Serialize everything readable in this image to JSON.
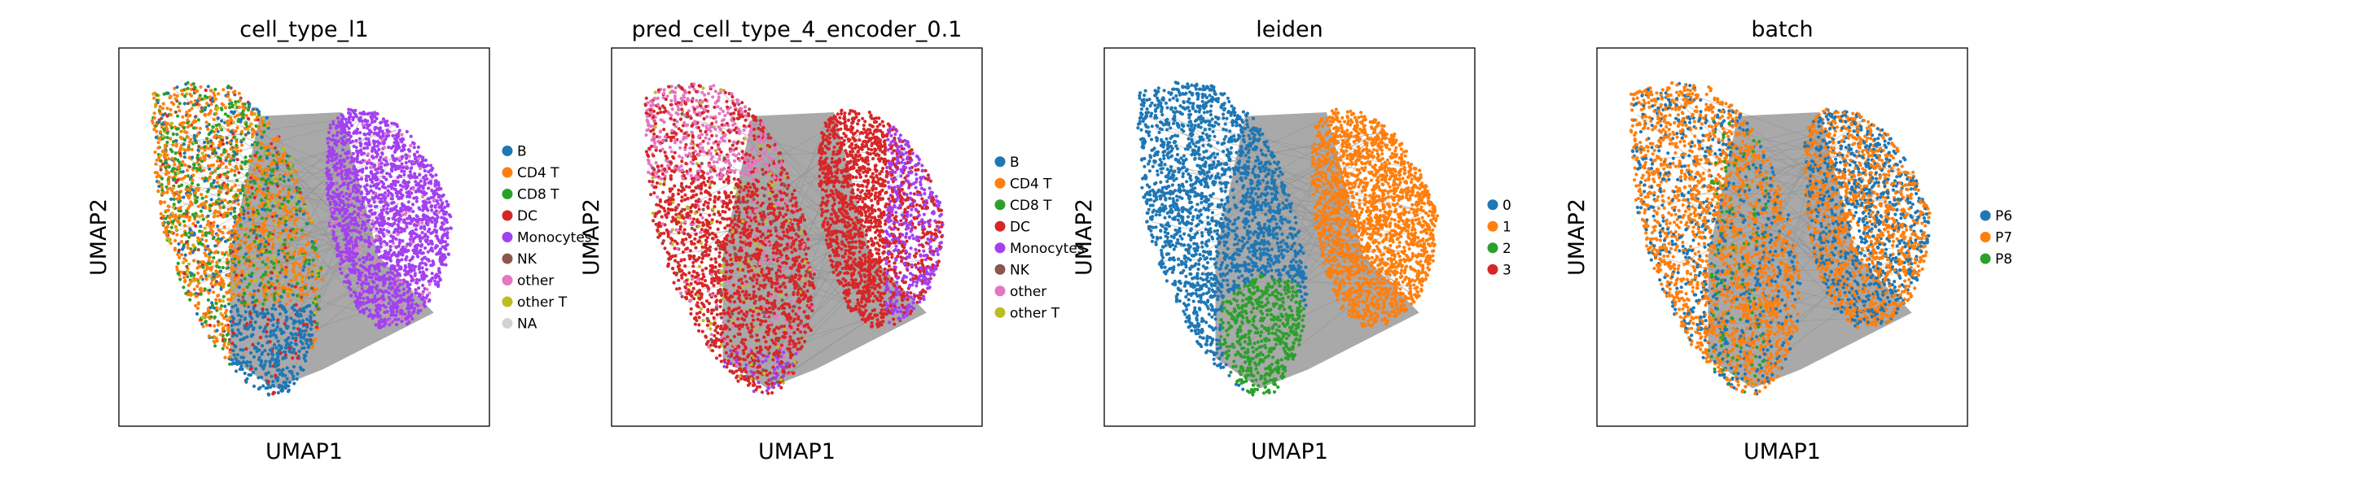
{
  "chart_data": [
    {
      "type": "scatter",
      "title": "cell_type_l1",
      "xlabel": "UMAP1",
      "ylabel": "UMAP2",
      "grid": false,
      "legend_position": "right",
      "series": [
        {
          "name": "B",
          "color": "#1f77b4"
        },
        {
          "name": "CD4 T",
          "color": "#ff7f0e"
        },
        {
          "name": "CD8 T",
          "color": "#2ca02c"
        },
        {
          "name": "DC",
          "color": "#d62728"
        },
        {
          "name": "Monocytes",
          "color": "#a340f0"
        },
        {
          "name": "NK",
          "color": "#8c564b"
        },
        {
          "name": "other",
          "color": "#e377c2"
        },
        {
          "name": "other T",
          "color": "#bcbd22"
        },
        {
          "name": "NA",
          "color": "#d3d3d3"
        }
      ]
    },
    {
      "type": "scatter",
      "title": "pred_cell_type_4_encoder_0.1",
      "xlabel": "UMAP1",
      "ylabel": "UMAP2",
      "grid": false,
      "legend_position": "right",
      "series": [
        {
          "name": "B",
          "color": "#1f77b4"
        },
        {
          "name": "CD4 T",
          "color": "#ff7f0e"
        },
        {
          "name": "CD8 T",
          "color": "#2ca02c"
        },
        {
          "name": "DC",
          "color": "#d62728"
        },
        {
          "name": "Monocytes",
          "color": "#a340f0"
        },
        {
          "name": "NK",
          "color": "#8c564b"
        },
        {
          "name": "other",
          "color": "#e377c2"
        },
        {
          "name": "other T",
          "color": "#bcbd22"
        }
      ]
    },
    {
      "type": "scatter",
      "title": "leiden",
      "xlabel": "UMAP1",
      "ylabel": "UMAP2",
      "grid": false,
      "legend_position": "right",
      "series": [
        {
          "name": "0",
          "color": "#1f77b4"
        },
        {
          "name": "1",
          "color": "#ff7f0e"
        },
        {
          "name": "2",
          "color": "#2ca02c"
        },
        {
          "name": "3",
          "color": "#d62728"
        }
      ]
    },
    {
      "type": "scatter",
      "title": "batch",
      "xlabel": "UMAP1",
      "ylabel": "UMAP2",
      "grid": false,
      "legend_position": "right",
      "series": [
        {
          "name": "P6",
          "color": "#1f77b4"
        },
        {
          "name": "P7",
          "color": "#ff7f0e"
        },
        {
          "name": "P8",
          "color": "#2ca02c"
        }
      ]
    }
  ]
}
